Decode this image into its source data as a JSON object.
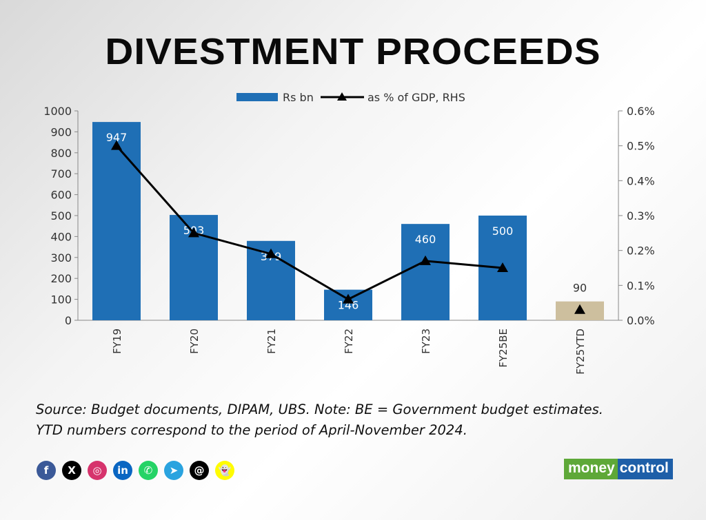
{
  "title": "DIVESTMENT PROCEEDS",
  "chart_data": {
    "type": "bar+line",
    "categories": [
      "FY19",
      "FY20",
      "FY21",
      "FY22",
      "FY23",
      "FY25BE",
      "FY25YTD"
    ],
    "series": [
      {
        "name": "Rs bn",
        "type": "bar",
        "axis": "left",
        "values": [
          947,
          503,
          379,
          146,
          460,
          500,
          90
        ],
        "color": "#1f6fb5",
        "highlight_color": "#cdbf9e"
      },
      {
        "name": "as % of GDP, RHS",
        "type": "line",
        "axis": "right",
        "values": [
          0.5,
          0.25,
          0.19,
          0.06,
          0.17,
          0.15,
          0.03
        ],
        "color": "#000000"
      }
    ],
    "ylim": [
      0,
      1000
    ],
    "yticks": [
      0,
      100,
      200,
      300,
      400,
      500,
      600,
      700,
      800,
      900,
      1000
    ],
    "y2lim": [
      0,
      0.6
    ],
    "y2ticks": [
      "0.0%",
      "0.1%",
      "0.2%",
      "0.3%",
      "0.4%",
      "0.5%",
      "0.6%"
    ],
    "legend": "top"
  },
  "note": [
    "Source: Budget documents, DIPAM, UBS. Note: BE = Government budget estimates.",
    "YTD numbers correspond to the period of April-November 2024."
  ],
  "social": [
    {
      "name": "facebook",
      "glyph": "f",
      "color": "#3b5998"
    },
    {
      "name": "x",
      "glyph": "X",
      "color": "#000000"
    },
    {
      "name": "instagram",
      "glyph": "◎",
      "color": "#d6336c"
    },
    {
      "name": "linkedin",
      "glyph": "in",
      "color": "#0a66c2"
    },
    {
      "name": "whatsapp",
      "glyph": "✆",
      "color": "#25d366"
    },
    {
      "name": "telegram",
      "glyph": "➤",
      "color": "#2aa3df"
    },
    {
      "name": "threads",
      "glyph": "@",
      "color": "#000000"
    },
    {
      "name": "snapchat",
      "glyph": "👻",
      "color": "#fffc00"
    }
  ],
  "logo": {
    "part1": "money",
    "part2": "control"
  }
}
